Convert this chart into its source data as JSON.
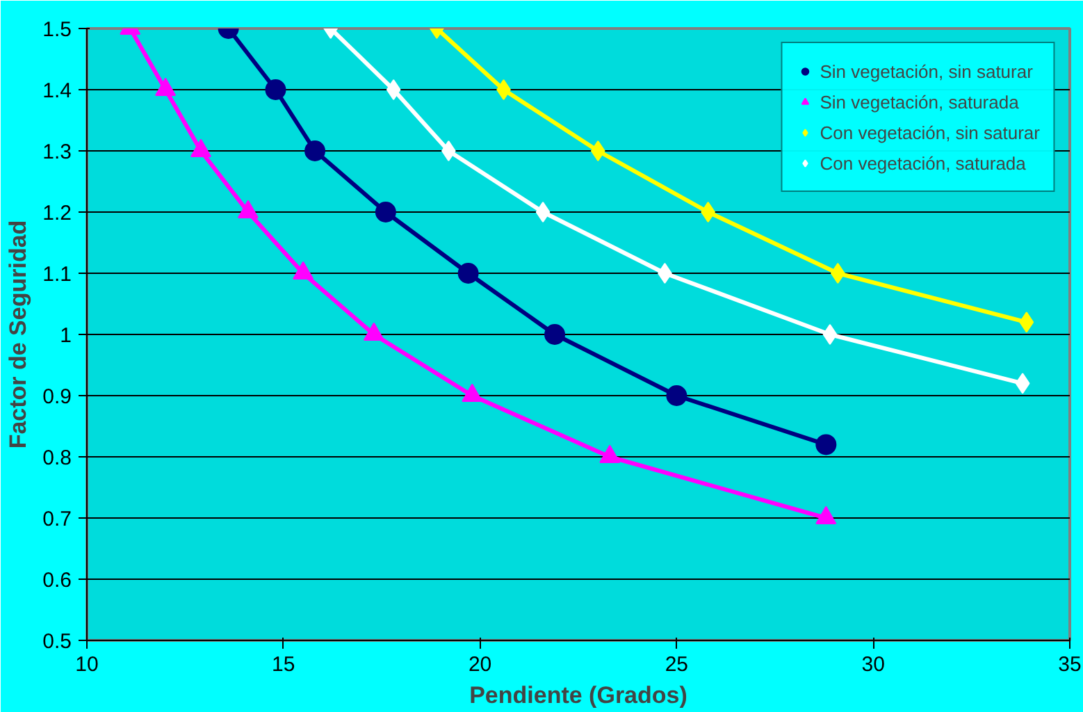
{
  "chart_data": {
    "type": "line",
    "xlabel": "Pendiente (Grados)",
    "ylabel": "Factor de Seguridad",
    "xlim": [
      10,
      35
    ],
    "xticks": [
      10,
      15,
      20,
      25,
      30,
      35
    ],
    "ylim": [
      0.5,
      1.5
    ],
    "yticks": [
      0.5,
      0.6,
      0.7,
      0.8,
      0.9,
      1,
      1.1,
      1.2,
      1.3,
      1.4,
      1.5
    ],
    "grid": "y",
    "legend": "top right",
    "series": [
      {
        "name": "Sin vegetación, sin saturar",
        "color": "#000080",
        "marker": "circle",
        "x": [
          13.6,
          14.8,
          15.8,
          17.6,
          19.7,
          21.9,
          25.0,
          28.8
        ],
        "values": [
          1.5,
          1.4,
          1.3,
          1.2,
          1.1,
          1.0,
          0.9,
          0.82
        ]
      },
      {
        "name": "Sin vegetación, saturada",
        "color": "#ff00ff",
        "marker": "triangle",
        "x": [
          11.1,
          12.0,
          12.9,
          14.1,
          15.5,
          17.3,
          19.8,
          23.3,
          28.8
        ],
        "values": [
          1.5,
          1.4,
          1.3,
          1.2,
          1.1,
          1.0,
          0.9,
          0.8,
          0.7
        ]
      },
      {
        "name": "Con vegetación, sin saturar",
        "color": "#ffff00",
        "marker": "diamond",
        "x": [
          18.9,
          20.6,
          23.0,
          25.8,
          29.1,
          33.9
        ],
        "values": [
          1.5,
          1.4,
          1.3,
          1.2,
          1.1,
          1.02
        ]
      },
      {
        "name": "Con vegetación, saturada",
        "color": "#ffffff",
        "marker": "diamond",
        "x": [
          16.2,
          17.8,
          19.2,
          21.6,
          24.7,
          28.9,
          33.8
        ],
        "values": [
          1.5,
          1.4,
          1.3,
          1.2,
          1.1,
          1.0,
          0.92
        ]
      }
    ]
  }
}
